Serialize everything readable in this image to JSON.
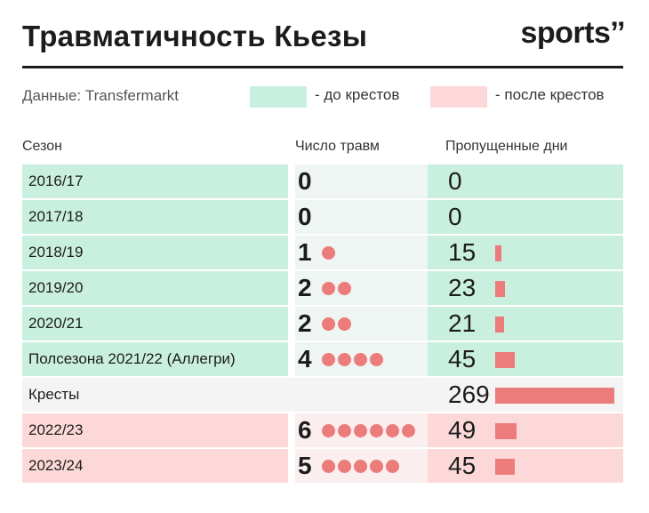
{
  "header": {
    "title": "Травматичность Кьезы",
    "logo": "sports’’"
  },
  "legend": {
    "source": "Данные: Transfermarkt",
    "before_label": "- до крестов",
    "after_label": "- после крестов",
    "before_color": "#c9efdf",
    "after_color": "#fcd9d8"
  },
  "colors": {
    "dot": "#ec7b7b",
    "bar": "#ec7b7b",
    "before_bg": "#c9efdf",
    "before_mid_bg": "#eef5f2",
    "after_bg": "#fcd9d8",
    "after_mid_bg": "#fbeeee",
    "neutral_bg": "#f4f4f4"
  },
  "chart_data": {
    "type": "table",
    "columns": [
      "Сезон",
      "Число травм",
      "Пропущенные дни"
    ],
    "rows": [
      {
        "season": "2016/17",
        "injuries": "0",
        "injury_count": 0,
        "days": "0",
        "days_value": 0,
        "period": "before"
      },
      {
        "season": "2017/18",
        "injuries": "0",
        "injury_count": 0,
        "days": "0",
        "days_value": 0,
        "period": "before"
      },
      {
        "season": "2018/19",
        "injuries": "1",
        "injury_count": 1,
        "days": "15",
        "days_value": 15,
        "period": "before"
      },
      {
        "season": "2019/20",
        "injuries": "2",
        "injury_count": 2,
        "days": "23",
        "days_value": 23,
        "period": "before"
      },
      {
        "season": "2020/21",
        "injuries": "2",
        "injury_count": 2,
        "days": "21",
        "days_value": 21,
        "period": "before"
      },
      {
        "season": "Полсезона 2021/22 (Аллегри)",
        "injuries": "4",
        "injury_count": 4,
        "days": "45",
        "days_value": 45,
        "period": "before"
      },
      {
        "season": "Кресты",
        "injuries": "",
        "injury_count": 0,
        "days": "269",
        "days_value": 269,
        "period": "neutral"
      },
      {
        "season": "2022/23",
        "injuries": "6",
        "injury_count": 6,
        "days": "49",
        "days_value": 49,
        "period": "after"
      },
      {
        "season": "2023/24",
        "injuries": "5",
        "injury_count": 5,
        "days": "45",
        "days_value": 45,
        "period": "after"
      }
    ],
    "days_max": 269
  }
}
